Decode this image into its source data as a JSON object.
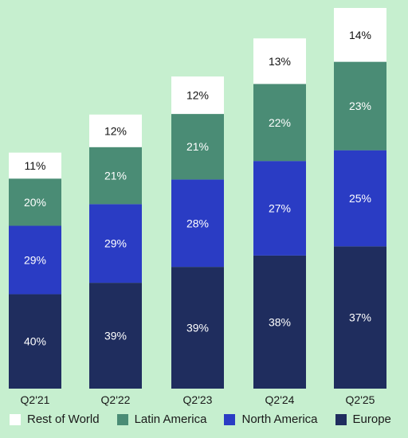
{
  "chart_data": {
    "type": "bar",
    "stacked": true,
    "categories": [
      "Q2'21",
      "Q2'22",
      "Q2'23",
      "Q2'24",
      "Q2'25"
    ],
    "series": [
      {
        "name": "Europe",
        "color": "#1f2d5e",
        "label_color": "#ffffff",
        "values": [
          40,
          39,
          39,
          38,
          37
        ]
      },
      {
        "name": "North America",
        "color": "#2a3cc4",
        "label_color": "#ffffff",
        "values": [
          29,
          29,
          28,
          27,
          25
        ]
      },
      {
        "name": "Latin America",
        "color": "#4a8c75",
        "label_color": "#ffffff",
        "values": [
          20,
          21,
          21,
          22,
          23
        ]
      },
      {
        "name": "Rest of World",
        "color": "#ffffff",
        "label_color": "#111111",
        "values": [
          11,
          12,
          12,
          13,
          14
        ]
      }
    ],
    "relative_totals": [
      0.62,
      0.72,
      0.82,
      0.92,
      1.0
    ],
    "value_format": "{v}%",
    "legend_order": [
      "Rest of World",
      "Latin America",
      "North America",
      "Europe"
    ],
    "legend_position": "bottom",
    "grid": false
  }
}
